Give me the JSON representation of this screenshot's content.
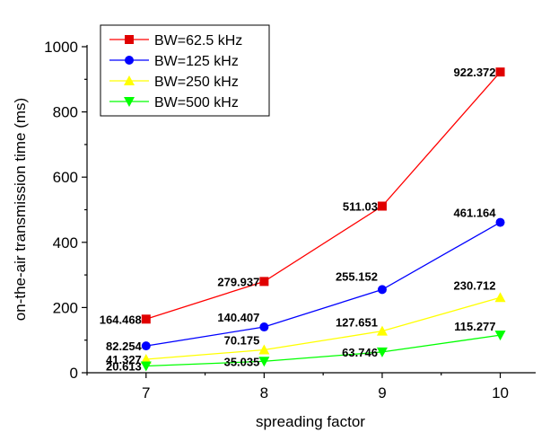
{
  "chart_data": {
    "type": "line",
    "xlabel": "spreading factor",
    "ylabel": "on-the-air transmission time (ms)",
    "x": [
      7,
      8,
      9,
      10
    ],
    "x_tick_labels": [
      "7",
      "8",
      "9",
      "10"
    ],
    "xlim": [
      6.5,
      10.3
    ],
    "ylim": [
      0,
      1000
    ],
    "y_ticks": [
      0,
      200,
      400,
      600,
      800,
      1000
    ],
    "y_tick_labels": [
      "0",
      "200",
      "400",
      "600",
      "800",
      "1000"
    ],
    "grid": false,
    "legend_position": "top-left",
    "series": [
      {
        "name": "BW=62.5 kHz",
        "color": "#ff0000",
        "marker_color": "#e00000",
        "marker": "square",
        "values": [
          164.468,
          279.937,
          511.03,
          922.372
        ],
        "labels": [
          "164.468",
          "279.937",
          "511.03",
          "922.372"
        ]
      },
      {
        "name": "BW=125 kHz",
        "color": "#0000ff",
        "marker_color": "#0000ff",
        "marker": "circle",
        "values": [
          82.254,
          140.407,
          255.152,
          461.164
        ],
        "labels": [
          "82.254",
          "140.407",
          "255.152",
          "461.164"
        ]
      },
      {
        "name": "BW=250 kHz",
        "color": "#ffff00",
        "marker_color": "#ffff00",
        "marker": "triangle-up",
        "values": [
          41.327,
          70.175,
          127.651,
          230.712
        ],
        "labels": [
          "41.327",
          "70.175",
          "127.651",
          "230.712"
        ]
      },
      {
        "name": "BW=500 kHz",
        "color": "#00ff00",
        "marker_color": "#00ff00",
        "marker": "triangle-down",
        "values": [
          20.613,
          35.035,
          63.746,
          115.277
        ],
        "labels": [
          "20.613",
          "35.035",
          "63.746",
          "115.277"
        ]
      }
    ]
  }
}
